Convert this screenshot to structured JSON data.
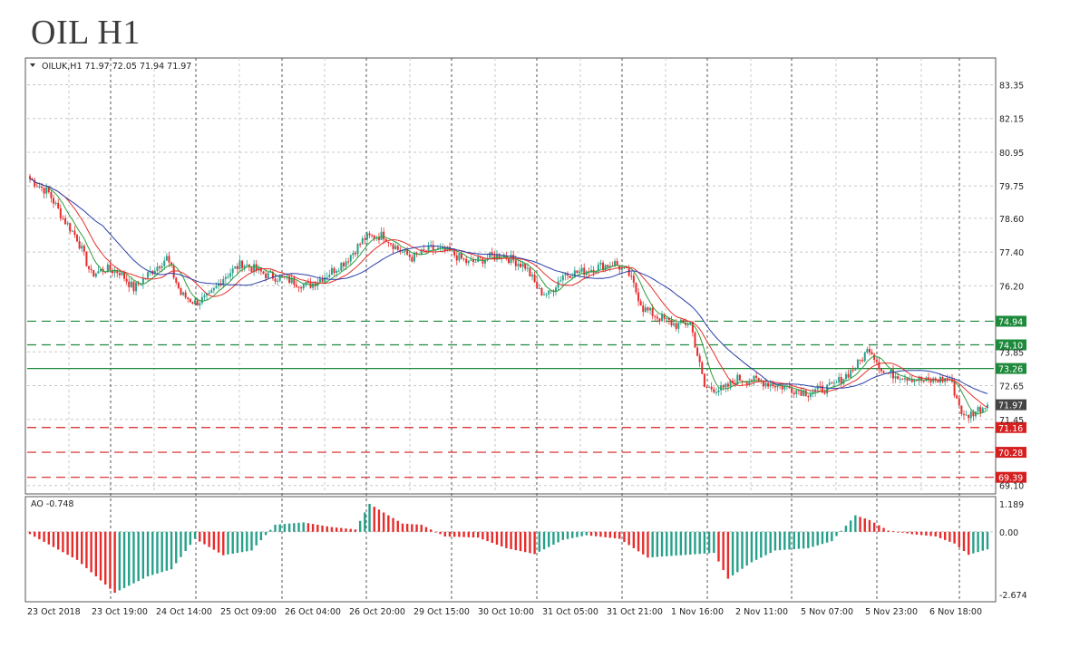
{
  "title": "OIL H1",
  "chart_data": {
    "type": "candlestick",
    "symbol_header": "OILUK,H1  71.97 72.05 71.94 71.97",
    "indicator_label": "AO -0.748",
    "price_ticks": [
      "83.35",
      "82.15",
      "80.95",
      "79.75",
      "78.60",
      "77.40",
      "76.20",
      "73.85",
      "72.65",
      "71.45",
      "69.10"
    ],
    "price_ylim": [
      68.8,
      84.3
    ],
    "ao_ticks": [
      "1.189",
      "0.00",
      "-2.674"
    ],
    "ao_ylim": [
      -2.674,
      1.189
    ],
    "time_labels": [
      "23 Oct 2018",
      "23 Oct 19:00",
      "24 Oct 14:00",
      "25 Oct 09:00",
      "26 Oct 04:00",
      "26 Oct 20:00",
      "29 Oct 15:00",
      "30 Oct 10:00",
      "31 Oct 05:00",
      "31 Oct 21:00",
      "1 Nov 16:00",
      "2 Nov 11:00",
      "5 Nov 07:00",
      "5 Nov 23:00",
      "6 Nov 18:00"
    ],
    "levels": [
      {
        "label": "74.94",
        "value": 74.94,
        "color": "#1e8a3c",
        "style": "dashed"
      },
      {
        "label": "74.10",
        "value": 74.1,
        "color": "#1e8a3c",
        "style": "dashed"
      },
      {
        "label": "73.26",
        "value": 73.26,
        "color": "#1e8a3c",
        "style": "solid"
      },
      {
        "label": "71.97",
        "value": 71.97,
        "color": "#444444",
        "style": "none"
      },
      {
        "label": "71.16",
        "value": 71.16,
        "color": "#d62020",
        "style": "dashed"
      },
      {
        "label": "70.28",
        "value": 70.28,
        "color": "#d62020",
        "style": "dashed"
      },
      {
        "label": "69.39",
        "value": 69.39,
        "color": "#d62020",
        "style": "dashed"
      }
    ],
    "close_anchors": [
      [
        0,
        80.0
      ],
      [
        8,
        79.5
      ],
      [
        14,
        78.6
      ],
      [
        20,
        77.9
      ],
      [
        26,
        76.6
      ],
      [
        32,
        76.8
      ],
      [
        38,
        76.7
      ],
      [
        44,
        76.1
      ],
      [
        50,
        76.6
      ],
      [
        58,
        77.2
      ],
      [
        64,
        75.9
      ],
      [
        70,
        75.6
      ],
      [
        76,
        75.8
      ],
      [
        82,
        76.5
      ],
      [
        90,
        77.0
      ],
      [
        100,
        76.6
      ],
      [
        110,
        76.4
      ],
      [
        118,
        76.2
      ],
      [
        126,
        76.6
      ],
      [
        134,
        77.1
      ],
      [
        142,
        77.9
      ],
      [
        150,
        78.0
      ],
      [
        156,
        77.5
      ],
      [
        162,
        77.2
      ],
      [
        170,
        77.5
      ],
      [
        178,
        77.4
      ],
      [
        186,
        77.0
      ],
      [
        194,
        77.2
      ],
      [
        200,
        77.3
      ],
      [
        210,
        76.9
      ],
      [
        216,
        76.0
      ],
      [
        220,
        75.9
      ],
      [
        226,
        76.6
      ],
      [
        234,
        76.7
      ],
      [
        242,
        76.9
      ],
      [
        248,
        77.0
      ],
      [
        254,
        76.6
      ],
      [
        260,
        75.4
      ],
      [
        266,
        75.1
      ],
      [
        274,
        74.8
      ],
      [
        280,
        74.9
      ],
      [
        286,
        72.6
      ],
      [
        294,
        72.5
      ],
      [
        300,
        72.9
      ],
      [
        310,
        72.8
      ],
      [
        320,
        72.6
      ],
      [
        330,
        72.4
      ],
      [
        340,
        72.6
      ],
      [
        350,
        73.3
      ],
      [
        356,
        74.0
      ],
      [
        362,
        73.1
      ],
      [
        370,
        73.0
      ],
      [
        380,
        72.8
      ],
      [
        390,
        72.9
      ],
      [
        396,
        71.5
      ],
      [
        402,
        71.8
      ],
      [
        406,
        71.97
      ]
    ],
    "ao_anchors": [
      [
        0,
        -0.1
      ],
      [
        20,
        -1.2
      ],
      [
        36,
        -2.6
      ],
      [
        50,
        -1.9
      ],
      [
        60,
        -1.6
      ],
      [
        70,
        -0.3
      ],
      [
        82,
        -1.0
      ],
      [
        94,
        -0.8
      ],
      [
        104,
        0.3
      ],
      [
        116,
        0.4
      ],
      [
        128,
        0.2
      ],
      [
        138,
        0.1
      ],
      [
        144,
        1.189
      ],
      [
        152,
        0.7
      ],
      [
        158,
        0.35
      ],
      [
        166,
        0.3
      ],
      [
        176,
        -0.2
      ],
      [
        190,
        -0.25
      ],
      [
        202,
        -0.7
      ],
      [
        214,
        -0.95
      ],
      [
        226,
        -0.35
      ],
      [
        236,
        -0.15
      ],
      [
        250,
        -0.3
      ],
      [
        262,
        -1.1
      ],
      [
        276,
        -1.0
      ],
      [
        290,
        -0.9
      ],
      [
        296,
        -2.0
      ],
      [
        306,
        -1.3
      ],
      [
        316,
        -0.8
      ],
      [
        330,
        -0.7
      ],
      [
        340,
        -0.4
      ],
      [
        350,
        0.7
      ],
      [
        356,
        0.5
      ],
      [
        364,
        0.05
      ],
      [
        374,
        -0.1
      ],
      [
        384,
        -0.2
      ],
      [
        392,
        -0.5
      ],
      [
        398,
        -0.98
      ],
      [
        406,
        -0.75
      ]
    ],
    "colors": {
      "bull": "#26a08a",
      "bear": "#e82b2b",
      "ma_fast": "#2e9e3b",
      "ma_mid": "#e5302a",
      "ma_slow": "#2a3fa8",
      "grid": "#c8c8c8",
      "axis": "#333333",
      "dashed_green": "#1e8a3c",
      "dashed_red": "#d62020"
    }
  }
}
